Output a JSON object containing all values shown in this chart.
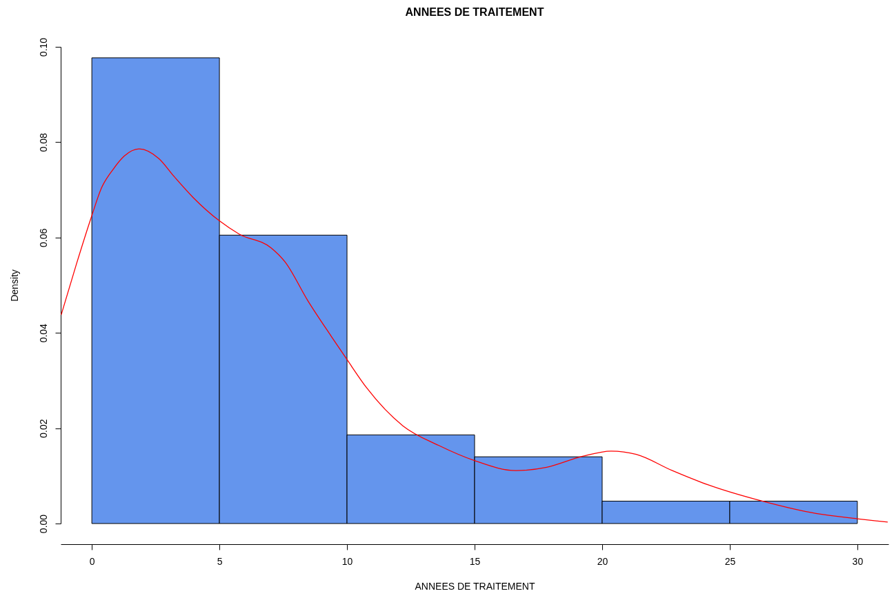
{
  "chart_data": {
    "type": "histogram",
    "title": "ANNEES DE TRAITEMENT",
    "xlabel": "ANNEES DE TRAITEMENT",
    "ylabel": "Density",
    "bins": [
      0,
      5,
      10,
      15,
      20,
      25,
      30
    ],
    "series": [
      {
        "color": "#6495ed",
        "values": [
          0.0977,
          0.0605,
          0.0186,
          0.014,
          0.0047,
          0.0047
        ]
      },
      {
        "type": "line",
        "color": "#ff0000",
        "x": [
          -1.2,
          -0.6,
          0,
          0.37,
          0.82,
          1.27,
          1.85,
          2.62,
          3.24,
          3.97,
          5,
          5.78,
          7.03,
          7.57,
          8.47,
          9.38,
          10,
          10.78,
          12.19,
          13.59,
          15,
          16.62,
          17.82,
          19.23,
          20.35,
          21.34,
          22.75,
          24.16,
          26.27,
          28.38,
          30,
          31.19
        ],
        "values": [
          0.0438,
          0.0545,
          0.0646,
          0.0703,
          0.0742,
          0.0771,
          0.0786,
          0.0766,
          0.0727,
          0.0684,
          0.0635,
          0.0607,
          0.0578,
          0.0549,
          0.0467,
          0.0393,
          0.0344,
          0.0284,
          0.0205,
          0.0164,
          0.0132,
          0.0111,
          0.0118,
          0.0141,
          0.0152,
          0.0145,
          0.0111,
          0.0081,
          0.0047,
          0.0021,
          0.001,
          0.0003
        ]
      }
    ],
    "xlim": [
      -1.22,
      31.22
    ],
    "xticks": [
      0,
      5,
      10,
      15,
      20,
      25,
      30
    ],
    "ylim": [
      0,
      0.1
    ],
    "yticks": [
      {
        "value": 0,
        "label": "0.00"
      },
      0.02,
      0.04,
      0.06,
      0.08,
      {
        "value": 0.1,
        "label": "0.10"
      }
    ],
    "grid": false
  }
}
